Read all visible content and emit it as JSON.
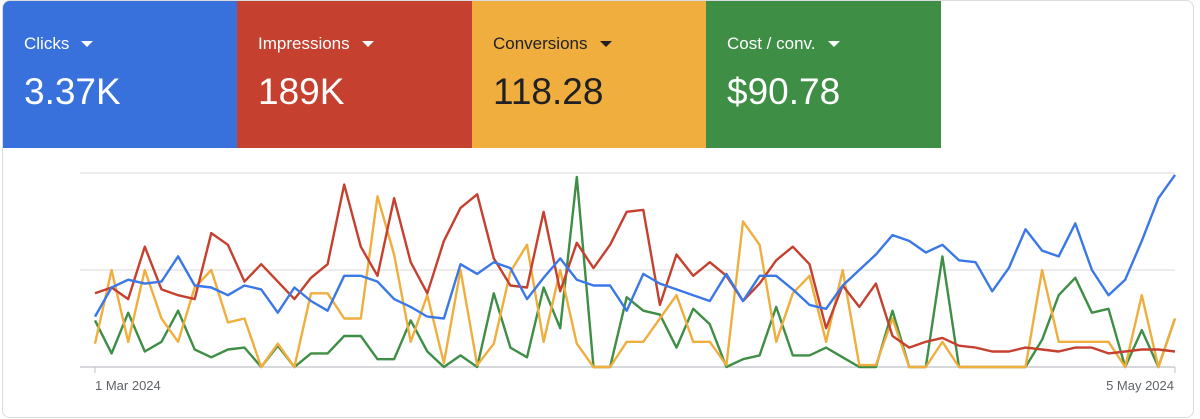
{
  "metrics": [
    {
      "label": "Clicks",
      "value": "3.37K",
      "color": "#3871dc",
      "text_color": "#ffffff"
    },
    {
      "label": "Impressions",
      "value": "189K",
      "color": "#c5402f",
      "text_color": "#ffffff"
    },
    {
      "label": "Conversions",
      "value": "118.28",
      "color": "#efae3e",
      "text_color": "#202124"
    },
    {
      "label": "Cost / conv.",
      "value": "$90.78",
      "color": "#3e8e45",
      "text_color": "#ffffff"
    }
  ],
  "chart_data": {
    "type": "line",
    "x_start": "1 Mar 2024",
    "x_end": "5 May 2024",
    "x_tick_labels": [
      "1 Mar 2024",
      "5 May 2024"
    ],
    "ylim": [
      0,
      100
    ],
    "y_units": "relative (no y-axis labels shown)",
    "grid": true,
    "series": [
      {
        "name": "Clicks",
        "color": "#3b78e7",
        "values": [
          26,
          41,
          45,
          43,
          44,
          57,
          42,
          41,
          37,
          42,
          40,
          28,
          41,
          34,
          29,
          47,
          47,
          44,
          35,
          31,
          26,
          25,
          53,
          48,
          54,
          51,
          35,
          46,
          56,
          45,
          42,
          42,
          29,
          48,
          43,
          40,
          37,
          34,
          48,
          34,
          47,
          47,
          40,
          32,
          30,
          42,
          50,
          58,
          68,
          65,
          59,
          63,
          55,
          54,
          39,
          51,
          71,
          60,
          57,
          74,
          50,
          37,
          45,
          65,
          87,
          99
        ]
      },
      {
        "name": "Impressions",
        "color": "#c5402f",
        "values": [
          38,
          41,
          35,
          62,
          40,
          37,
          35,
          69,
          63,
          44,
          53,
          44,
          35,
          46,
          53,
          94,
          62,
          47,
          87,
          54,
          38,
          65,
          82,
          89,
          56,
          42,
          41,
          80,
          39,
          64,
          51,
          63,
          80,
          81,
          32,
          58,
          47,
          54,
          47,
          34,
          43,
          55,
          62,
          53,
          20,
          42,
          31,
          43,
          16,
          10,
          13,
          15,
          11,
          10,
          8,
          8,
          10,
          9,
          8,
          10,
          10,
          7,
          8,
          9,
          9,
          8
        ]
      },
      {
        "name": "Conversions",
        "color": "#efae3e",
        "values": [
          12,
          50,
          13,
          50,
          25,
          13,
          41,
          50,
          23,
          25,
          0,
          12,
          0,
          38,
          38,
          25,
          25,
          88,
          58,
          13,
          37,
          2,
          50,
          1,
          12,
          49,
          63,
          13,
          50,
          12,
          0,
          0,
          13,
          13,
          25,
          37,
          13,
          13,
          1,
          75,
          63,
          13,
          38,
          47,
          13,
          50,
          1,
          1,
          25,
          0,
          0,
          13,
          0,
          0,
          0,
          0,
          0,
          50,
          13,
          13,
          13,
          13,
          0,
          37,
          0,
          25
        ]
      },
      {
        "name": "Cost / conv.",
        "color": "#3e8e45",
        "values": [
          24,
          7,
          28,
          8,
          13,
          29,
          9,
          5,
          9,
          10,
          0,
          11,
          0,
          7,
          7,
          16,
          16,
          4,
          4,
          24,
          8,
          0,
          6,
          0,
          38,
          10,
          5,
          41,
          20,
          98,
          0,
          0,
          36,
          29,
          27,
          10,
          30,
          22,
          0,
          4,
          6,
          31,
          6,
          6,
          10,
          5,
          0,
          0,
          29,
          0,
          0,
          57,
          0,
          0,
          0,
          0,
          0,
          14,
          37,
          46,
          28,
          30,
          0,
          19,
          0,
          25
        ]
      }
    ]
  }
}
